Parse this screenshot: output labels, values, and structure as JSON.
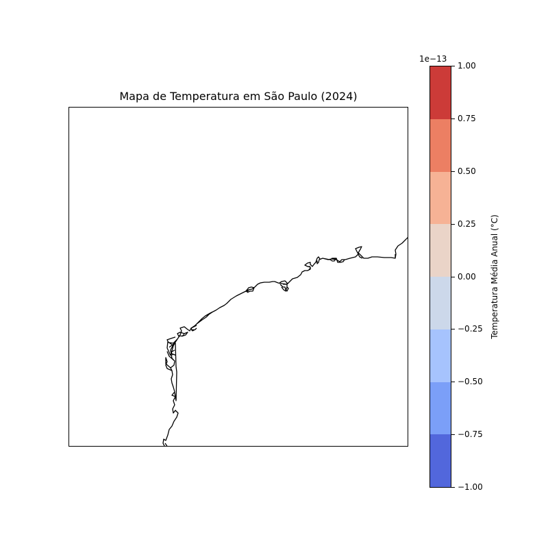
{
  "map": {
    "title": "Mapa de Temperatura em São Paulo (2024)",
    "coastline_color": "#000000"
  },
  "colorbar": {
    "offset_label": "1e−13",
    "label": "Temperatura Média Anual (°C)",
    "ticks": [
      {
        "value": 1.0,
        "label": "1.00"
      },
      {
        "value": 0.75,
        "label": "0.75"
      },
      {
        "value": 0.5,
        "label": "0.50"
      },
      {
        "value": 0.25,
        "label": "0.25"
      },
      {
        "value": 0.0,
        "label": "0.00"
      },
      {
        "value": -0.25,
        "label": "−0.25"
      },
      {
        "value": -0.5,
        "label": "−0.50"
      },
      {
        "value": -0.75,
        "label": "−0.75"
      },
      {
        "value": -1.0,
        "label": "−1.00"
      }
    ],
    "range": [
      -1.0,
      1.0
    ],
    "levels": [
      {
        "from": 0.75,
        "to": 1.0,
        "color": "#cc3b38"
      },
      {
        "from": 0.5,
        "to": 0.75,
        "color": "#ec7f63"
      },
      {
        "from": 0.25,
        "to": 0.5,
        "color": "#f6b295"
      },
      {
        "from": 0.0,
        "to": 0.25,
        "color": "#ead4c8"
      },
      {
        "from": -0.25,
        "to": 0.0,
        "color": "#ccd8ea"
      },
      {
        "from": -0.5,
        "to": -0.25,
        "color": "#a6c3fd"
      },
      {
        "from": -0.75,
        "to": -0.5,
        "color": "#7b9ff8"
      },
      {
        "from": -1.0,
        "to": -0.75,
        "color": "#5267dc"
      }
    ]
  }
}
